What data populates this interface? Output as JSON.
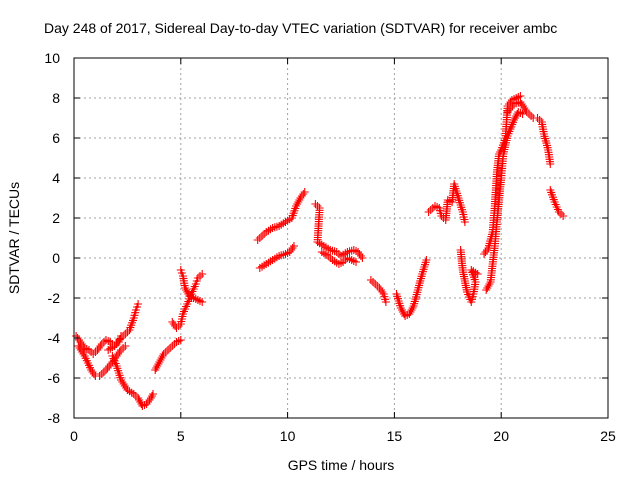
{
  "chart_data": {
    "type": "scatter",
    "title": "Day 248 of 2017, Sidereal Day-to-day VTEC variation (SDTVAR) for receiver ambc",
    "xlabel": "GPS time / hours",
    "ylabel": "SDTVAR / TECUs",
    "xlim": [
      0,
      25
    ],
    "ylim": [
      -8,
      10
    ],
    "xticks": [
      0,
      5,
      10,
      15,
      20,
      25
    ],
    "yticks": [
      -8,
      -6,
      -4,
      -2,
      0,
      2,
      4,
      6,
      8,
      10
    ],
    "grid": true,
    "marker": "+",
    "series": [
      {
        "name": "SDTVAR",
        "color": "#ff0000",
        "segments": [
          [
            [
              0.1,
              -3.9
            ],
            [
              0.3,
              -4.2
            ],
            [
              0.5,
              -4.5
            ],
            [
              0.7,
              -4.6
            ],
            [
              0.9,
              -4.8
            ],
            [
              1.1,
              -4.6
            ],
            [
              1.3,
              -4.3
            ],
            [
              1.5,
              -4.1
            ],
            [
              1.7,
              -4.2
            ],
            [
              1.9,
              -4.4
            ],
            [
              2.1,
              -4.2
            ],
            [
              2.2,
              -3.9
            ]
          ],
          [
            [
              0.2,
              -4.4
            ],
            [
              0.5,
              -4.9
            ],
            [
              0.8,
              -5.6
            ],
            [
              1.0,
              -5.9
            ],
            [
              1.2,
              -5.9
            ],
            [
              1.5,
              -5.6
            ],
            [
              1.8,
              -5.2
            ],
            [
              2.0,
              -4.9
            ],
            [
              2.2,
              -4.6
            ],
            [
              2.4,
              -4.4
            ]
          ],
          [
            [
              1.8,
              -4.9
            ],
            [
              2.0,
              -5.4
            ],
            [
              2.2,
              -6.1
            ],
            [
              2.5,
              -6.6
            ],
            [
              2.8,
              -6.8
            ],
            [
              3.0,
              -7.0
            ],
            [
              3.2,
              -7.4
            ],
            [
              3.4,
              -7.3
            ],
            [
              3.6,
              -7.0
            ],
            [
              3.7,
              -6.8
            ]
          ],
          [
            [
              1.6,
              -4.6
            ],
            [
              1.9,
              -4.4
            ],
            [
              2.2,
              -4.0
            ],
            [
              2.4,
              -3.8
            ],
            [
              2.6,
              -3.6
            ],
            [
              2.8,
              -3.0
            ],
            [
              2.9,
              -2.6
            ],
            [
              3.0,
              -2.3
            ]
          ],
          [
            [
              3.8,
              -5.6
            ],
            [
              4.0,
              -5.2
            ],
            [
              4.2,
              -4.8
            ],
            [
              4.4,
              -4.6
            ],
            [
              4.6,
              -4.4
            ],
            [
              4.8,
              -4.2
            ],
            [
              5.0,
              -4.1
            ]
          ],
          [
            [
              4.6,
              -3.2
            ],
            [
              4.8,
              -3.5
            ],
            [
              5.0,
              -3.3
            ],
            [
              5.1,
              -2.8
            ],
            [
              5.3,
              -2.3
            ],
            [
              5.5,
              -1.8
            ],
            [
              5.7,
              -1.3
            ],
            [
              5.8,
              -1.0
            ],
            [
              6.0,
              -0.8
            ]
          ],
          [
            [
              5.0,
              -0.6
            ],
            [
              5.1,
              -0.9
            ],
            [
              5.2,
              -1.5
            ],
            [
              5.4,
              -1.9
            ],
            [
              5.6,
              -2.0
            ],
            [
              5.8,
              -2.1
            ],
            [
              6.0,
              -2.2
            ]
          ],
          [
            [
              8.7,
              -0.5
            ],
            [
              9.0,
              -0.3
            ],
            [
              9.3,
              -0.1
            ],
            [
              9.6,
              0.1
            ],
            [
              9.9,
              0.2
            ],
            [
              10.1,
              0.3
            ],
            [
              10.3,
              0.6
            ]
          ],
          [
            [
              8.6,
              0.9
            ],
            [
              8.8,
              1.1
            ],
            [
              9.0,
              1.3
            ],
            [
              9.3,
              1.5
            ],
            [
              9.6,
              1.6
            ],
            [
              9.9,
              1.8
            ],
            [
              10.2,
              2.0
            ],
            [
              10.4,
              2.6
            ],
            [
              10.6,
              3.0
            ],
            [
              10.8,
              3.3
            ]
          ],
          [
            [
              11.3,
              2.7
            ],
            [
              11.5,
              2.5
            ],
            [
              11.4,
              0.8
            ],
            [
              11.7,
              0.6
            ],
            [
              12.0,
              0.4
            ],
            [
              12.3,
              0.3
            ],
            [
              12.5,
              0.1
            ],
            [
              12.8,
              0.3
            ],
            [
              13.1,
              0.4
            ],
            [
              13.3,
              0.3
            ],
            [
              13.5,
              0.0
            ]
          ],
          [
            [
              11.6,
              0.3
            ],
            [
              11.9,
              0.1
            ],
            [
              12.1,
              -0.1
            ],
            [
              12.4,
              -0.3
            ],
            [
              12.6,
              -0.2
            ],
            [
              12.8,
              0.0
            ],
            [
              13.0,
              -0.1
            ],
            [
              13.2,
              -0.2
            ]
          ],
          [
            [
              13.9,
              -1.1
            ],
            [
              14.1,
              -1.3
            ],
            [
              14.3,
              -1.5
            ],
            [
              14.5,
              -1.8
            ],
            [
              14.6,
              -2.2
            ]
          ],
          [
            [
              15.1,
              -1.8
            ],
            [
              15.3,
              -2.5
            ],
            [
              15.5,
              -2.9
            ],
            [
              15.7,
              -2.8
            ],
            [
              15.9,
              -2.4
            ],
            [
              16.1,
              -1.6
            ],
            [
              16.3,
              -0.8
            ],
            [
              16.5,
              -0.1
            ]
          ],
          [
            [
              16.6,
              2.3
            ],
            [
              16.9,
              2.6
            ],
            [
              17.1,
              2.5
            ],
            [
              17.2,
              2.1
            ],
            [
              17.4,
              1.9
            ],
            [
              17.5,
              2.9
            ],
            [
              17.7,
              2.8
            ],
            [
              17.8,
              3.7
            ],
            [
              18.0,
              3.0
            ],
            [
              18.2,
              2.3
            ],
            [
              18.3,
              1.8
            ]
          ],
          [
            [
              18.1,
              0.4
            ],
            [
              18.2,
              -0.6
            ],
            [
              18.4,
              -1.7
            ],
            [
              18.6,
              -2.2
            ],
            [
              18.7,
              -1.8
            ],
            [
              18.8,
              -1.2
            ],
            [
              18.6,
              -0.6
            ],
            [
              18.9,
              -0.8
            ]
          ],
          [
            [
              19.3,
              -1.6
            ],
            [
              19.5,
              -1.2
            ],
            [
              19.7,
              0.6
            ],
            [
              19.8,
              1.8
            ],
            [
              19.9,
              2.9
            ],
            [
              20.0,
              4.0
            ],
            [
              20.1,
              5.2
            ],
            [
              20.3,
              6.1
            ],
            [
              20.6,
              6.9
            ],
            [
              20.8,
              7.3
            ],
            [
              21.0,
              7.2
            ]
          ],
          [
            [
              19.2,
              0.2
            ],
            [
              19.4,
              0.5
            ],
            [
              19.6,
              1.3
            ],
            [
              19.7,
              2.6
            ],
            [
              19.8,
              4.3
            ],
            [
              19.9,
              5.2
            ],
            [
              20.0,
              5.4
            ],
            [
              20.2,
              6.0
            ],
            [
              20.3,
              7.6
            ],
            [
              20.5,
              7.9
            ],
            [
              20.7,
              8.0
            ],
            [
              20.9,
              8.1
            ]
          ],
          [
            [
              20.3,
              7.3
            ],
            [
              20.6,
              7.7
            ],
            [
              20.9,
              7.8
            ],
            [
              21.2,
              7.3
            ],
            [
              21.5,
              7.0
            ],
            [
              21.7,
              7.0
            ],
            [
              21.9,
              6.8
            ],
            [
              22.0,
              6.2
            ],
            [
              22.2,
              5.4
            ],
            [
              22.3,
              4.7
            ]
          ],
          [
            [
              22.3,
              3.4
            ],
            [
              22.5,
              2.8
            ],
            [
              22.7,
              2.3
            ],
            [
              22.9,
              2.1
            ]
          ]
        ]
      }
    ]
  }
}
